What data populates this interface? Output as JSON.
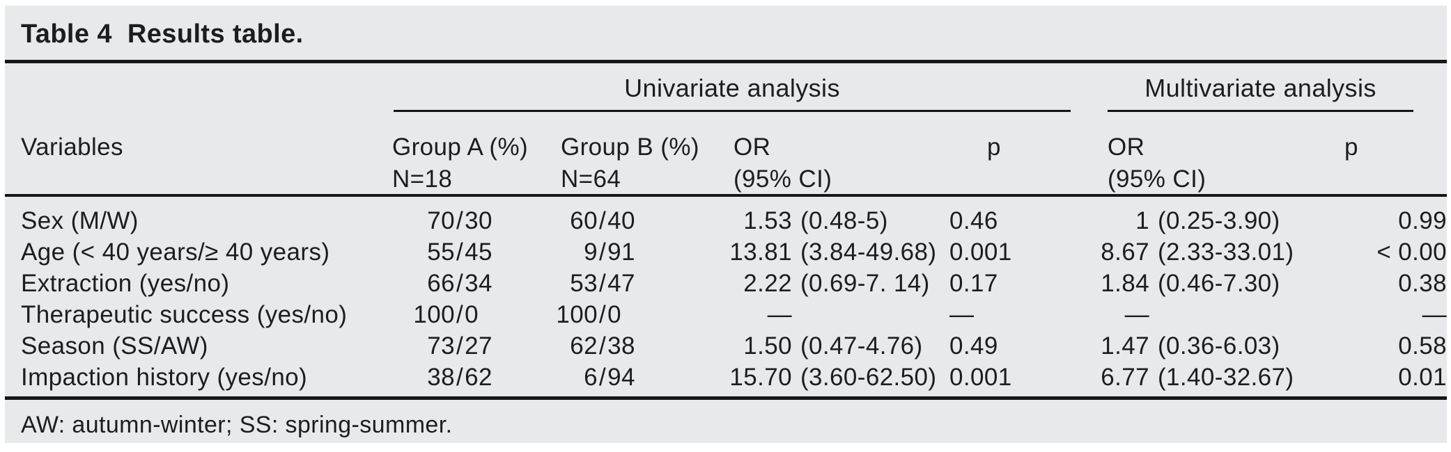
{
  "table": {
    "title": {
      "label": "Table 4",
      "caption": "Results table."
    },
    "fraction_separator": "/",
    "headers": {
      "univariate": "Univariate analysis",
      "multivariate": "Multivariate analysis",
      "variables": "Variables",
      "group_a_line1": "Group A (%)",
      "group_a_line2": "N=18",
      "group_b_line1": "Group B (%)",
      "group_b_line2": "N=64",
      "or_line1": "OR",
      "or_line2": "(95% CI)",
      "p": "p"
    },
    "rows": [
      {
        "variable": "Sex (M/W)",
        "group_a_num": "70",
        "group_a_den": "30",
        "group_b_num": "60",
        "group_b_den": "40",
        "uni_or": "1.53",
        "uni_ci": "(0.48-5)",
        "uni_p": "0.46",
        "multi_or": "1",
        "multi_ci": "(0.25-3.90)",
        "multi_p": "0.99"
      },
      {
        "variable": "Age (< 40 years/≥ 40 years)",
        "group_a_num": "55",
        "group_a_den": "45",
        "group_b_num": "9",
        "group_b_den": "91",
        "uni_or": "13.81",
        "uni_ci": "(3.84-49.68)",
        "uni_p": "0.001",
        "multi_or": "8.67",
        "multi_ci": "(2.33-33.01)",
        "multi_p": "< 0.00"
      },
      {
        "variable": "Extraction (yes/no)",
        "group_a_num": "66",
        "group_a_den": "34",
        "group_b_num": "53",
        "group_b_den": "47",
        "uni_or": "2.22",
        "uni_ci": "(0.69-7. 14)",
        "uni_p": "0.17",
        "multi_or": "1.84",
        "multi_ci": "(0.46-7.30)",
        "multi_p": "0.38"
      },
      {
        "variable": "Therapeutic success (yes/no)",
        "group_a_num": "100",
        "group_a_den": "0",
        "group_b_num": "100",
        "group_b_den": "0",
        "uni_or": "—",
        "uni_ci": "",
        "uni_p": "—",
        "multi_or": "—",
        "multi_ci": "",
        "multi_p": "—"
      },
      {
        "variable": "Season (SS/AW)",
        "group_a_num": "73",
        "group_a_den": "27",
        "group_b_num": "62",
        "group_b_den": "38",
        "uni_or": "1.50",
        "uni_ci": "(0.47-4.76)",
        "uni_p": "0.49",
        "multi_or": "1.47",
        "multi_ci": "(0.36-6.03)",
        "multi_p": "0.58"
      },
      {
        "variable": "Impaction history (yes/no)",
        "group_a_num": "38",
        "group_a_den": "62",
        "group_b_num": "6",
        "group_b_den": "94",
        "uni_or": "15.70",
        "uni_ci": "(3.60-62.50)",
        "uni_p": "0.001",
        "multi_or": "6.77",
        "multi_ci": "(1.40-32.67)",
        "multi_p": "0.01"
      }
    ],
    "footnote": "AW: autumn-winter; SS: spring-summer.",
    "colors": {
      "panel_background": "#e8e9ea",
      "rule": "#161616",
      "text": "#1d1d1d"
    }
  }
}
